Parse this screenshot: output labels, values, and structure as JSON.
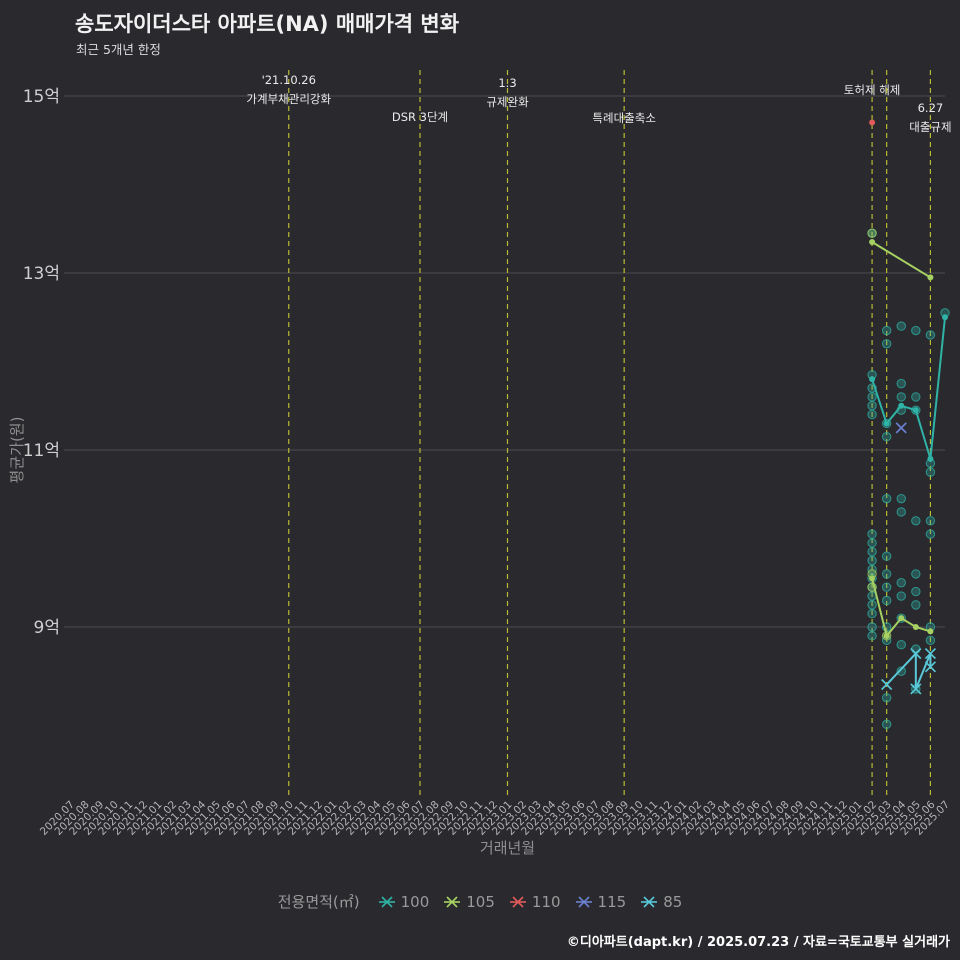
{
  "footer": {
    "credit": "©디아파트(dapt.kr) / 2025.07.23 / 자료=국토교통부 실거래가"
  },
  "chart_data": {
    "type": "scatter",
    "title": "송도자이더스타 아파트(NA) 매매가격 변화",
    "subtitle": "최근 5개년 한정",
    "xlabel": "거래년월",
    "ylabel": "평균가(원)",
    "ylim": [
      7.05,
      15.2
    ],
    "y_ticks": [
      {
        "label": "15억",
        "value": 15
      },
      {
        "label": "13억",
        "value": 13
      },
      {
        "label": "11억",
        "value": 11
      },
      {
        "label": "9억",
        "value": 9
      }
    ],
    "x_ticks": [
      "2020.07",
      "2020.08",
      "2020.09",
      "2020.10",
      "2020.11",
      "2020.12",
      "2021.01",
      "2021.02",
      "2021.03",
      "2021.04",
      "2021.05",
      "2021.06",
      "2021.07",
      "2021.08",
      "2021.09",
      "2021.10",
      "2021.11",
      "2021.12",
      "2022.01",
      "2022.02",
      "2022.03",
      "2022.04",
      "2022.05",
      "2022.06",
      "2022.07",
      "2022.08",
      "2022.09",
      "2022.10",
      "2022.11",
      "2022.12",
      "2023.01",
      "2023.02",
      "2023.03",
      "2023.04",
      "2023.05",
      "2023.06",
      "2023.07",
      "2023.08",
      "2023.09",
      "2023.10",
      "2023.11",
      "2023.12",
      "2024.01",
      "2024.02",
      "2024.03",
      "2024.04",
      "2024.05",
      "2024.06",
      "2024.07",
      "2024.08",
      "2024.09",
      "2024.10",
      "2024.11",
      "2024.12",
      "2025.01",
      "2025.02",
      "2025.03",
      "2025.04",
      "2025.05",
      "2025.06",
      "2025.07"
    ],
    "events": [
      {
        "x": "2021.10",
        "labels": [
          "'21.10.26",
          "가계부채관리강화"
        ]
      },
      {
        "x": "2022.07",
        "labels": [
          "DSR 3단계"
        ]
      },
      {
        "x": "2023.01",
        "labels": [
          "1.3",
          "규제완화"
        ]
      },
      {
        "x": "2023.09",
        "labels": [
          "특례대출축소"
        ]
      },
      {
        "x": "2025.02",
        "labels": [
          "토허제 해제"
        ]
      },
      {
        "x": "2025.03",
        "labels": []
      },
      {
        "x": "2025.06",
        "labels": [
          "6.27",
          "대출규제"
        ]
      }
    ],
    "series": [
      {
        "name": "100",
        "color": "#2fb3a6",
        "marker": "dot",
        "points": [
          [
            "2025.02",
            11.8
          ],
          [
            "2025.03",
            11.3
          ],
          [
            "2025.04",
            11.5
          ],
          [
            "2025.05",
            11.45
          ],
          [
            "2025.06",
            10.9
          ],
          [
            "2025.07",
            12.5
          ]
        ]
      },
      {
        "name": "105",
        "color": "#a6d162",
        "marker": "dot",
        "segments": [
          [
            [
              "2025.02",
              13.35
            ],
            [
              "2025.06",
              12.95
            ]
          ],
          [
            [
              "2025.02",
              9.55
            ],
            [
              "2025.03",
              8.9
            ],
            [
              "2025.04",
              9.1
            ],
            [
              "2025.05",
              9.0
            ],
            [
              "2025.06",
              8.95
            ]
          ]
        ]
      },
      {
        "name": "110",
        "color": "#e25b5b",
        "marker": "dot",
        "points": [
          [
            "2025.02",
            14.7
          ]
        ]
      },
      {
        "name": "115",
        "color": "#6b7fd0",
        "marker": "x",
        "points": [
          [
            "2025.04",
            11.25
          ]
        ]
      },
      {
        "name": "85",
        "color": "#59c8d8",
        "marker": "x",
        "points": [
          [
            "2025.03",
            8.35
          ],
          [
            "2025.05",
            8.7
          ],
          [
            "2025.05",
            8.3
          ],
          [
            "2025.06",
            8.7
          ],
          [
            "2025.06",
            8.55
          ]
        ]
      }
    ],
    "scatter": [
      {
        "color": "#2fb3a6",
        "points": [
          [
            "2025.02",
            13.45
          ],
          [
            "2025.02",
            11.85
          ],
          [
            "2025.02",
            11.7
          ],
          [
            "2025.02",
            11.6
          ],
          [
            "2025.02",
            11.5
          ],
          [
            "2025.02",
            11.4
          ],
          [
            "2025.02",
            10.05
          ],
          [
            "2025.02",
            9.95
          ],
          [
            "2025.02",
            9.85
          ],
          [
            "2025.02",
            9.75
          ],
          [
            "2025.02",
            9.65
          ],
          [
            "2025.02",
            9.55
          ],
          [
            "2025.02",
            9.45
          ],
          [
            "2025.02",
            9.35
          ],
          [
            "2025.02",
            9.25
          ],
          [
            "2025.02",
            9.15
          ],
          [
            "2025.02",
            9.0
          ],
          [
            "2025.02",
            8.9
          ],
          [
            "2025.03",
            12.35
          ],
          [
            "2025.03",
            12.2
          ],
          [
            "2025.03",
            11.3
          ],
          [
            "2025.03",
            11.15
          ],
          [
            "2025.03",
            10.45
          ],
          [
            "2025.03",
            9.8
          ],
          [
            "2025.03",
            9.6
          ],
          [
            "2025.03",
            9.45
          ],
          [
            "2025.03",
            9.3
          ],
          [
            "2025.03",
            9.0
          ],
          [
            "2025.03",
            8.85
          ],
          [
            "2025.03",
            8.2
          ],
          [
            "2025.03",
            7.9
          ],
          [
            "2025.04",
            12.4
          ],
          [
            "2025.04",
            11.75
          ],
          [
            "2025.04",
            11.6
          ],
          [
            "2025.04",
            11.45
          ],
          [
            "2025.04",
            10.45
          ],
          [
            "2025.04",
            10.3
          ],
          [
            "2025.04",
            9.5
          ],
          [
            "2025.04",
            9.35
          ],
          [
            "2025.04",
            9.1
          ],
          [
            "2025.04",
            8.8
          ],
          [
            "2025.04",
            8.5
          ],
          [
            "2025.05",
            12.35
          ],
          [
            "2025.05",
            11.6
          ],
          [
            "2025.05",
            11.45
          ],
          [
            "2025.05",
            10.2
          ],
          [
            "2025.05",
            9.6
          ],
          [
            "2025.05",
            9.4
          ],
          [
            "2025.05",
            9.25
          ],
          [
            "2025.05",
            8.75
          ],
          [
            "2025.05",
            8.3
          ],
          [
            "2025.06",
            12.3
          ],
          [
            "2025.06",
            10.85
          ],
          [
            "2025.06",
            10.75
          ],
          [
            "2025.06",
            10.2
          ],
          [
            "2025.06",
            10.05
          ],
          [
            "2025.06",
            9.0
          ],
          [
            "2025.06",
            8.85
          ],
          [
            "2025.07",
            12.55
          ]
        ]
      },
      {
        "color": "#a6d162",
        "points": [
          [
            "2025.02",
            13.45
          ],
          [
            "2025.02",
            9.6
          ],
          [
            "2025.02",
            9.45
          ],
          [
            "2025.03",
            8.9
          ]
        ]
      }
    ],
    "legend": {
      "title": "전용면적(㎡)",
      "items": [
        {
          "label": "100",
          "color": "#2fb3a6"
        },
        {
          "label": "105",
          "color": "#a6d162"
        },
        {
          "label": "110",
          "color": "#e25b5b"
        },
        {
          "label": "115",
          "color": "#6b7fd0"
        },
        {
          "label": "85",
          "color": "#59c8d8"
        }
      ]
    }
  }
}
